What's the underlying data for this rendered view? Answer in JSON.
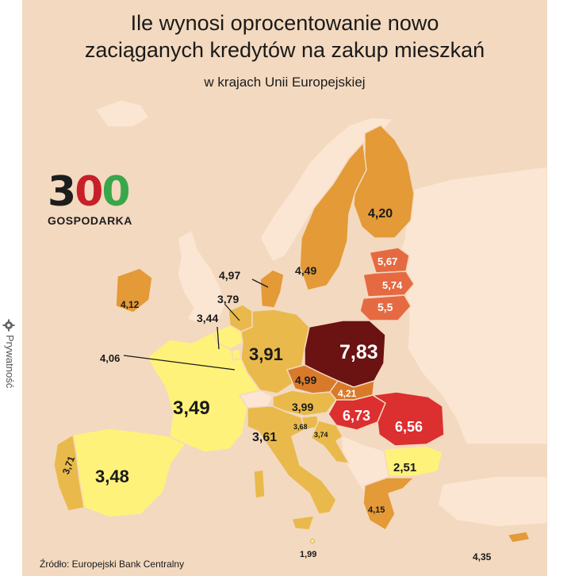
{
  "title_line1": "Ile wynosi oprocentowanie nowo",
  "title_line2": "zaciąganych kredytów na zakup mieszkań",
  "subtitle": "w krajach Unii Europejskiej",
  "logo_number": "300",
  "logo_text": "GOSPODARKA",
  "source": "Źródło: Europejski Bank Centralny",
  "privacy_label": "Prywatność",
  "colors": {
    "background": "#f3d9bf",
    "non_eu": "#fbe6d3",
    "yellow": "#fff27a",
    "light_orange": "#e9b94b",
    "orange": "#e39a37",
    "deep_orange": "#d97a2b",
    "red_orange": "#e56a42",
    "red": "#dc2f2f",
    "dark_red": "#6b1212"
  },
  "chart_data": {
    "type": "map",
    "values": [
      {
        "country": "Poland",
        "value": "7,83"
      },
      {
        "country": "Hungary",
        "value": "6,73"
      },
      {
        "country": "Romania",
        "value": "6,56"
      },
      {
        "country": "Estonia",
        "value": "5,67"
      },
      {
        "country": "Latvia",
        "value": "5,74"
      },
      {
        "country": "Lithuania",
        "value": "5,5"
      },
      {
        "country": "Czechia",
        "value": "4,99"
      },
      {
        "country": "Denmark",
        "value": "4,97"
      },
      {
        "country": "Sweden",
        "value": "4,49"
      },
      {
        "country": "Slovakia",
        "value": "4,21"
      },
      {
        "country": "Finland",
        "value": "4,20"
      },
      {
        "country": "Greece",
        "value": "4,15"
      },
      {
        "country": "Ireland",
        "value": "4,12"
      },
      {
        "country": "Luxembourg",
        "value": "4,06"
      },
      {
        "country": "Austria",
        "value": "3,99"
      },
      {
        "country": "Germany",
        "value": "3,91"
      },
      {
        "country": "Netherlands",
        "value": "3,79"
      },
      {
        "country": "Croatia",
        "value": "3,74"
      },
      {
        "country": "Portugal",
        "value": "3,71"
      },
      {
        "country": "Slovenia",
        "value": "3,68"
      },
      {
        "country": "Italy",
        "value": "3,61"
      },
      {
        "country": "France",
        "value": "3,49"
      },
      {
        "country": "Spain",
        "value": "3,48"
      },
      {
        "country": "Belgium",
        "value": "3,44"
      },
      {
        "country": "Bulgaria",
        "value": "2,51"
      },
      {
        "country": "Malta",
        "value": "1,99"
      },
      {
        "country": "Cyprus",
        "value": "4,35"
      }
    ]
  }
}
